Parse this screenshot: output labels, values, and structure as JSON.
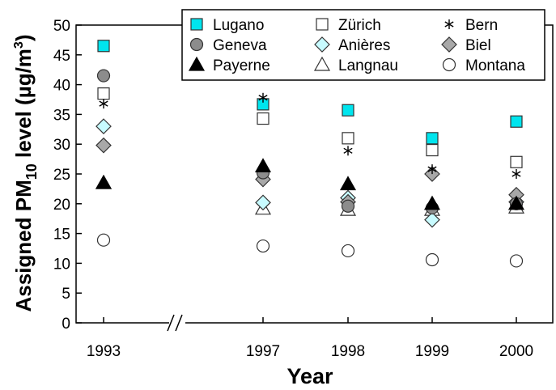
{
  "chart_data": {
    "type": "scatter",
    "xlabel": "Year",
    "ylabel": "Assigned PM10 level (µg/m3)",
    "ylabel_parts": {
      "pre": "Assigned PM",
      "sub": "10",
      "mid": " level (µg/m",
      "sup": "3",
      "post": ")"
    },
    "x_categories": [
      "1993",
      "1997",
      "1998",
      "1999",
      "2000"
    ],
    "axis_break": "//",
    "ylim": [
      0,
      50
    ],
    "y_ticks": [
      "0",
      "5",
      "10",
      "15",
      "20",
      "25",
      "30",
      "35",
      "40",
      "45",
      "50"
    ],
    "grid": false,
    "legend_position": "top-right",
    "series": [
      {
        "name": "Lugano",
        "marker": "square-cyan",
        "values": [
          46.5,
          36.7,
          35.7,
          31.0,
          33.8
        ]
      },
      {
        "name": "Zürich",
        "marker": "square-open",
        "values": [
          38.5,
          34.3,
          31.0,
          29.0,
          27.0
        ]
      },
      {
        "name": "Bern",
        "marker": "asterisk",
        "values": [
          36.8,
          37.8,
          28.9,
          25.8,
          25.0
        ]
      },
      {
        "name": "Geneva",
        "marker": "circle-gray",
        "values": [
          41.5,
          25.2,
          19.6,
          19.3,
          20.0
        ]
      },
      {
        "name": "Anières",
        "marker": "diamond-cyan",
        "values": [
          33.0,
          20.2,
          21.0,
          17.3,
          20.3
        ]
      },
      {
        "name": "Biel",
        "marker": "diamond-gray",
        "values": [
          29.8,
          24.1,
          20.3,
          25.0,
          21.5
        ]
      },
      {
        "name": "Payerne",
        "marker": "triangle-black",
        "values": [
          23.5,
          26.3,
          23.3,
          20.0,
          20.0
        ]
      },
      {
        "name": "Langnau",
        "marker": "triangle-open",
        "values": [
          23.5,
          19.2,
          19.0,
          19.0,
          19.4
        ]
      },
      {
        "name": "Montana",
        "marker": "circle-open",
        "values": [
          13.9,
          12.9,
          12.1,
          10.6,
          10.4
        ]
      }
    ]
  },
  "colors": {
    "cyan": "#00e5ee",
    "gray": "#8c8c8c",
    "black": "#000000",
    "white": "#ffffff"
  }
}
